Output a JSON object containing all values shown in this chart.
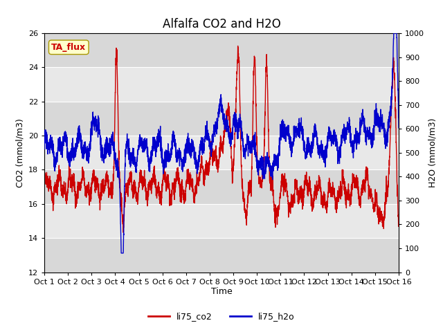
{
  "title": "Alfalfa CO2 and H2O",
  "xlabel": "Time",
  "ylabel_left": "CO2 (mmol/m3)",
  "ylabel_right": "H2O (mmol/m3)",
  "annotation": "TA_flux",
  "annotation_color": "#cc0000",
  "annotation_bg": "#ffffcc",
  "annotation_border": "#aa9900",
  "xlim": [
    0,
    15
  ],
  "ylim_left": [
    12,
    26
  ],
  "ylim_right": [
    0,
    1000
  ],
  "xtick_labels": [
    "Oct 1",
    "Oct 2",
    "Oct 3",
    "Oct 4",
    "Oct 5",
    "Oct 6",
    "Oct 7",
    "Oct 8",
    "Oct 9",
    "Oct 10",
    "Oct 11",
    "Oct 12",
    "Oct 13",
    "Oct 14",
    "Oct 15",
    "Oct 16"
  ],
  "xtick_positions": [
    0,
    1,
    2,
    3,
    4,
    5,
    6,
    7,
    8,
    9,
    10,
    11,
    12,
    13,
    14,
    15
  ],
  "ytick_left": [
    12,
    14,
    16,
    18,
    20,
    22,
    24,
    26
  ],
  "ytick_right": [
    0,
    100,
    200,
    300,
    400,
    500,
    600,
    700,
    800,
    900,
    1000
  ],
  "background_color": "#ffffff",
  "plot_bg_color": "#e8e8e8",
  "grid_color": "#ffffff",
  "band_colors": [
    "#d8d8d8",
    "#e8e8e8"
  ],
  "line_co2_color": "#cc0000",
  "line_h2o_color": "#0000cc",
  "line_width": 1.0,
  "legend_co2": "li75_co2",
  "legend_h2o": "li75_h2o",
  "title_fontsize": 12,
  "label_fontsize": 9,
  "tick_fontsize": 8
}
